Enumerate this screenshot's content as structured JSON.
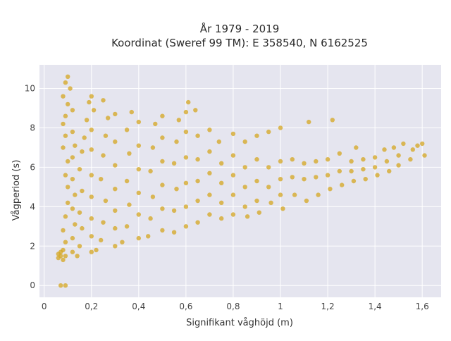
{
  "chart_data": {
    "type": "scatter",
    "title_lines": [
      "År 1979 - 2019",
      "Koordinat (Sweref 99 TM): E 358540, N 6162525"
    ],
    "xlabel": "Signifikant våghöjd (m)",
    "ylabel": "Vågperiod (s)",
    "xlim": [
      -0.02,
      1.68
    ],
    "ylim": [
      -0.6,
      11.2
    ],
    "xticks": [
      0,
      0.2,
      0.4,
      0.6,
      0.8,
      1,
      1.2,
      1.4,
      1.6
    ],
    "xtick_labels": [
      "0",
      "0,2",
      "0,4",
      "0,6",
      "0,8",
      "1",
      "1,2",
      "1,4",
      "1,6"
    ],
    "yticks": [
      0,
      2,
      4,
      6,
      8,
      10
    ],
    "ytick_labels": [
      "0",
      "2",
      "4",
      "6",
      "8",
      "10"
    ],
    "grid": true,
    "marker_color": "#d4a520",
    "plot_bgcolor": "#e5e5ef",
    "series": [
      {
        "points": [
          [
            0.07,
            0.0
          ],
          [
            0.09,
            0.0
          ],
          [
            0.06,
            1.4
          ],
          [
            0.06,
            1.6
          ],
          [
            0.07,
            1.5
          ],
          [
            0.07,
            1.7
          ],
          [
            0.08,
            1.3
          ],
          [
            0.08,
            1.8
          ],
          [
            0.09,
            1.5
          ],
          [
            0.09,
            2.2
          ],
          [
            0.08,
            2.8
          ],
          [
            0.09,
            3.5
          ],
          [
            0.1,
            4.2
          ],
          [
            0.1,
            5.0
          ],
          [
            0.09,
            5.6
          ],
          [
            0.1,
            6.3
          ],
          [
            0.08,
            7.0
          ],
          [
            0.09,
            7.6
          ],
          [
            0.08,
            8.2
          ],
          [
            0.09,
            8.6
          ],
          [
            0.08,
            9.6
          ],
          [
            0.09,
            10.3
          ],
          [
            0.1,
            10.6
          ],
          [
            0.11,
            10.0
          ],
          [
            0.1,
            9.2
          ],
          [
            0.12,
            8.9
          ],
          [
            0.12,
            7.8
          ],
          [
            0.13,
            7.1
          ],
          [
            0.12,
            6.5
          ],
          [
            0.12,
            5.4
          ],
          [
            0.13,
            4.6
          ],
          [
            0.12,
            3.9
          ],
          [
            0.13,
            3.1
          ],
          [
            0.12,
            2.4
          ],
          [
            0.12,
            1.7
          ],
          [
            0.14,
            1.5
          ],
          [
            0.15,
            2.0
          ],
          [
            0.16,
            2.9
          ],
          [
            0.15,
            3.7
          ],
          [
            0.16,
            4.8
          ],
          [
            0.15,
            5.9
          ],
          [
            0.16,
            6.8
          ],
          [
            0.17,
            7.5
          ],
          [
            0.18,
            8.4
          ],
          [
            0.19,
            9.3
          ],
          [
            0.2,
            9.6
          ],
          [
            0.21,
            8.9
          ],
          [
            0.2,
            7.9
          ],
          [
            0.2,
            6.9
          ],
          [
            0.2,
            5.6
          ],
          [
            0.2,
            4.5
          ],
          [
            0.2,
            3.4
          ],
          [
            0.2,
            2.5
          ],
          [
            0.2,
            1.7
          ],
          [
            0.22,
            1.8
          ],
          [
            0.24,
            2.3
          ],
          [
            0.25,
            3.2
          ],
          [
            0.26,
            4.3
          ],
          [
            0.24,
            5.4
          ],
          [
            0.25,
            6.6
          ],
          [
            0.26,
            7.6
          ],
          [
            0.27,
            8.5
          ],
          [
            0.25,
            9.4
          ],
          [
            0.3,
            8.7
          ],
          [
            0.3,
            7.3
          ],
          [
            0.3,
            6.1
          ],
          [
            0.3,
            4.9
          ],
          [
            0.3,
            3.8
          ],
          [
            0.3,
            2.9
          ],
          [
            0.3,
            2.0
          ],
          [
            0.33,
            2.2
          ],
          [
            0.35,
            3.0
          ],
          [
            0.36,
            4.1
          ],
          [
            0.35,
            5.3
          ],
          [
            0.36,
            6.7
          ],
          [
            0.35,
            7.9
          ],
          [
            0.37,
            8.8
          ],
          [
            0.4,
            8.3
          ],
          [
            0.4,
            7.1
          ],
          [
            0.4,
            5.9
          ],
          [
            0.4,
            4.7
          ],
          [
            0.4,
            3.6
          ],
          [
            0.4,
            2.4
          ],
          [
            0.44,
            2.5
          ],
          [
            0.45,
            3.4
          ],
          [
            0.46,
            4.5
          ],
          [
            0.45,
            5.8
          ],
          [
            0.46,
            7.0
          ],
          [
            0.47,
            8.2
          ],
          [
            0.5,
            8.6
          ],
          [
            0.5,
            7.5
          ],
          [
            0.5,
            6.3
          ],
          [
            0.5,
            5.1
          ],
          [
            0.5,
            3.9
          ],
          [
            0.5,
            2.8
          ],
          [
            0.55,
            2.7
          ],
          [
            0.55,
            3.8
          ],
          [
            0.56,
            4.9
          ],
          [
            0.55,
            6.2
          ],
          [
            0.56,
            7.3
          ],
          [
            0.57,
            8.4
          ],
          [
            0.6,
            8.8
          ],
          [
            0.61,
            9.3
          ],
          [
            0.6,
            7.8
          ],
          [
            0.6,
            6.5
          ],
          [
            0.6,
            5.2
          ],
          [
            0.6,
            4.0
          ],
          [
            0.6,
            3.0
          ],
          [
            0.64,
            8.9
          ],
          [
            0.65,
            7.6
          ],
          [
            0.65,
            6.4
          ],
          [
            0.65,
            5.3
          ],
          [
            0.65,
            4.3
          ],
          [
            0.65,
            3.2
          ],
          [
            0.7,
            7.9
          ],
          [
            0.7,
            6.8
          ],
          [
            0.7,
            5.7
          ],
          [
            0.7,
            4.6
          ],
          [
            0.7,
            3.6
          ],
          [
            0.74,
            7.3
          ],
          [
            0.75,
            6.2
          ],
          [
            0.75,
            5.2
          ],
          [
            0.75,
            4.2
          ],
          [
            0.75,
            3.4
          ],
          [
            0.8,
            7.7
          ],
          [
            0.8,
            6.6
          ],
          [
            0.8,
            5.6
          ],
          [
            0.8,
            4.6
          ],
          [
            0.8,
            3.6
          ],
          [
            0.85,
            7.3
          ],
          [
            0.85,
            6.0
          ],
          [
            0.85,
            5.0
          ],
          [
            0.85,
            4.0
          ],
          [
            0.86,
            3.5
          ],
          [
            0.9,
            7.6
          ],
          [
            0.9,
            6.4
          ],
          [
            0.9,
            5.3
          ],
          [
            0.9,
            4.3
          ],
          [
            0.91,
            3.7
          ],
          [
            0.95,
            7.8
          ],
          [
            0.95,
            6.0
          ],
          [
            0.95,
            5.0
          ],
          [
            0.96,
            4.2
          ],
          [
            1.0,
            8.0
          ],
          [
            1.0,
            6.3
          ],
          [
            1.0,
            5.4
          ],
          [
            1.0,
            4.6
          ],
          [
            1.01,
            3.9
          ],
          [
            1.05,
            6.4
          ],
          [
            1.05,
            5.5
          ],
          [
            1.06,
            4.6
          ],
          [
            1.1,
            6.2
          ],
          [
            1.1,
            5.4
          ],
          [
            1.11,
            4.3
          ],
          [
            1.12,
            8.3
          ],
          [
            1.15,
            6.3
          ],
          [
            1.15,
            5.5
          ],
          [
            1.16,
            4.6
          ],
          [
            1.2,
            6.4
          ],
          [
            1.2,
            5.6
          ],
          [
            1.21,
            4.9
          ],
          [
            1.22,
            8.4
          ],
          [
            1.25,
            6.7
          ],
          [
            1.25,
            5.8
          ],
          [
            1.26,
            5.1
          ],
          [
            1.3,
            6.3
          ],
          [
            1.3,
            5.8
          ],
          [
            1.31,
            5.3
          ],
          [
            1.32,
            7.0
          ],
          [
            1.35,
            6.4
          ],
          [
            1.35,
            5.9
          ],
          [
            1.36,
            5.4
          ],
          [
            1.4,
            6.5
          ],
          [
            1.4,
            6.0
          ],
          [
            1.41,
            5.6
          ],
          [
            1.44,
            6.9
          ],
          [
            1.45,
            6.3
          ],
          [
            1.46,
            5.8
          ],
          [
            1.48,
            7.0
          ],
          [
            1.5,
            6.6
          ],
          [
            1.5,
            6.1
          ],
          [
            1.52,
            7.2
          ],
          [
            1.55,
            6.4
          ],
          [
            1.56,
            6.9
          ],
          [
            1.58,
            7.1
          ],
          [
            1.6,
            7.2
          ],
          [
            1.61,
            6.6
          ]
        ]
      }
    ]
  }
}
